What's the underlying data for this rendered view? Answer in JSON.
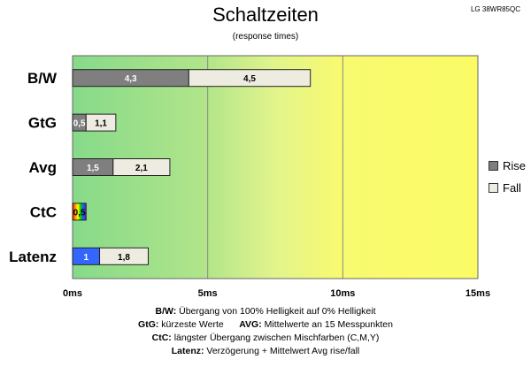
{
  "model_label": "LG 38WR85QC",
  "chart_data": {
    "type": "bar",
    "orientation": "horizontal",
    "stacked": true,
    "title": "Schaltzeiten",
    "subtitle": "(response times)",
    "xlim": [
      0,
      15
    ],
    "x_ticks": [
      "0ms",
      "5ms",
      "10ms",
      "15ms"
    ],
    "categories": [
      "B/W",
      "GtG",
      "Avg",
      "CtC",
      "Latenz"
    ],
    "series": [
      {
        "name": "Rise",
        "values": [
          4.3,
          0.5,
          1.5,
          0.5,
          1
        ],
        "labels": [
          "4,3",
          "0,5",
          "1,5",
          "0,5",
          "1"
        ],
        "color": "#7f7f7f"
      },
      {
        "name": "Fall",
        "values": [
          4.5,
          1.1,
          2.1,
          null,
          1.8
        ],
        "labels": [
          "4,5",
          "1,1",
          "2,1",
          "",
          "1,8"
        ],
        "color": "#eeece1"
      }
    ],
    "special_colors": {
      "CtC": "rainbow",
      "Latenz": "#3366ff"
    },
    "background_gradient": [
      "#88dc88",
      "#e6f58a",
      "#fbfb6a"
    ],
    "legend_position": "right"
  },
  "footnotes": [
    {
      "label": "B/W:",
      "text": "Übergang von 100% Helligkeit auf 0% Helligkeit"
    },
    {
      "label": "GtG:",
      "text": "kürzeste Werte",
      "label2": "AVG:",
      "text2": "Mittelwerte an 15 Messpunkten"
    },
    {
      "label": "CtC:",
      "text": "längster Übergang zwischen Mischfarben (C,M,Y)"
    },
    {
      "label": "Latenz:",
      "text": "Verzögerung + Mittelwert Avg rise/fall"
    }
  ]
}
